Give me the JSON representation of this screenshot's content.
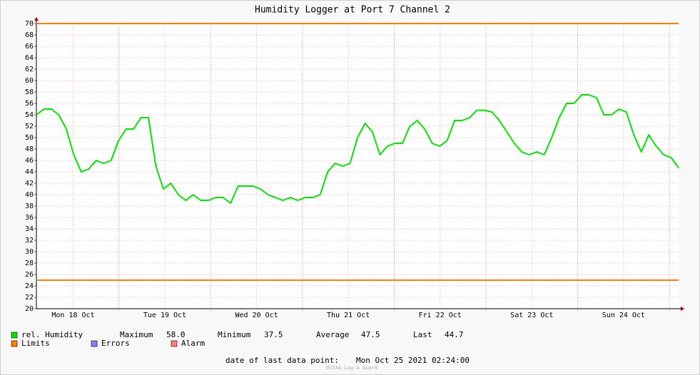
{
  "chart_data": {
    "type": "line",
    "title": "Humidity Logger at Port 7 Channel 2",
    "xlim": [
      0,
      168
    ],
    "xticks": [
      {
        "value": 9.6,
        "label": "Mon 18 Oct"
      },
      {
        "value": 33.6,
        "label": "Tue 19 Oct"
      },
      {
        "value": 57.6,
        "label": "Wed 20 Oct"
      },
      {
        "value": 81.6,
        "label": "Thu 21 Oct"
      },
      {
        "value": 105.6,
        "label": "Fri 22 Oct"
      },
      {
        "value": 129.6,
        "label": "Sat 23 Oct"
      },
      {
        "value": 153.6,
        "label": "Sun 24 Oct"
      }
    ],
    "ylim": [
      20,
      70
    ],
    "yticks": [
      20,
      22,
      24,
      26,
      28,
      30,
      32,
      34,
      36,
      38,
      40,
      42,
      44,
      46,
      48,
      50,
      52,
      54,
      56,
      58,
      60,
      62,
      64,
      66,
      68,
      70
    ],
    "grid": true,
    "series": [
      {
        "name": "rel. Humidity",
        "color": "#00e600",
        "values": [
          54,
          55,
          55,
          54,
          51.5,
          47,
          44,
          44.5,
          46,
          45.5,
          46,
          49.5,
          51.5,
          51.5,
          53.5,
          53.5,
          45,
          41,
          42,
          40,
          39,
          40,
          39,
          39,
          39.5,
          39.5,
          38.5,
          41.5,
          41.5,
          41.5,
          41,
          40,
          39.5,
          39,
          39.5,
          39,
          39.5,
          39.5,
          40,
          44,
          45.5,
          45,
          45.5,
          50,
          52.5,
          51,
          47,
          48.5,
          49,
          49,
          52,
          53,
          51.5,
          49,
          48.5,
          49.5,
          53,
          53,
          53.5,
          54.8,
          54.8,
          54.5,
          53,
          51,
          49,
          47.5,
          47,
          47.5,
          47,
          50,
          53.5,
          56,
          56,
          57.5,
          57.5,
          57,
          54,
          54,
          55,
          54.5,
          50.5,
          47.5,
          50.5,
          48.5,
          47,
          46.5,
          44.7
        ]
      }
    ],
    "limits": {
      "name": "Limits",
      "color": "#ff7f00",
      "values": [
        70,
        25
      ]
    },
    "errors": {
      "name": "Errors",
      "color": "#7f7fff"
    },
    "alarm": {
      "name": "Alarm",
      "color": "#ff7f7f"
    },
    "stats": [
      {
        "label": "Maximum",
        "value": "58.0"
      },
      {
        "label": "Minimum",
        "value": "37.5"
      },
      {
        "label": "Average",
        "value": "47.5"
      },
      {
        "label": "Last",
        "value": "44.7"
      }
    ],
    "footer": {
      "label": "date of last data point:",
      "value": "Mon Oct 25 2021 02:24:00"
    },
    "watermark": "OCTAA Log & Guard"
  }
}
